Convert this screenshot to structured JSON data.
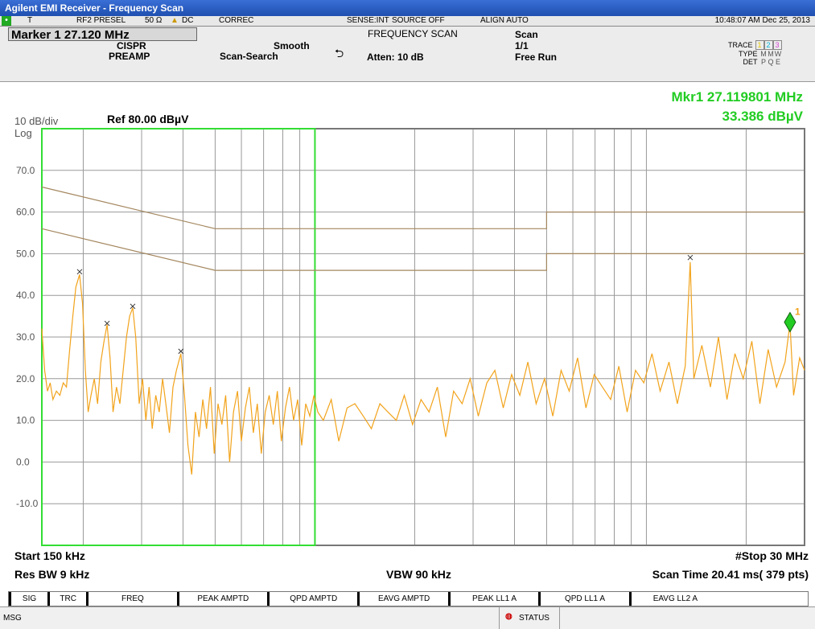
{
  "title_bar": "Agilent EMI Receiver  - Frequency Scan",
  "status": {
    "trigger": "T",
    "input": "RF2 PRESEL",
    "impedance": "50 Ω",
    "coupling": "DC",
    "correction": "CORREC",
    "sense": "SENSE:INT",
    "source": "SOURCE OFF",
    "align": "ALIGN AUTO",
    "clock": "10:48:07 AM Dec 25, 2013"
  },
  "marker_box": "Marker 1 27.120 MHz",
  "settings": {
    "detector": "CISPR",
    "preamp": "PREAMP",
    "smooth": "Smooth",
    "search": "Scan-Search"
  },
  "mode": "FREQUENCY SCAN",
  "atten": "Atten: 10 dB",
  "scan": {
    "label": "Scan",
    "count": "1/1",
    "run": "Free Run"
  },
  "trace_box": {
    "labels": [
      "TRACE",
      "TYPE",
      "DET"
    ],
    "rows": [
      [
        "1",
        "2",
        "3"
      ],
      [
        "M",
        "M",
        "W"
      ],
      [
        "P",
        "Q",
        "E"
      ]
    ],
    "colors": [
      "#e6c800",
      "#00b4d8",
      "#d040d0"
    ]
  },
  "marker_readout": {
    "line1": "Mkr1  27.119801 MHz",
    "line2": "33.386 dBµV"
  },
  "scale": "10 dB/div",
  "ref": "Ref 80.00 dBµV",
  "log": "Log",
  "chart_data": {
    "type": "line",
    "xscale": "log",
    "xlim": [
      0.15,
      30
    ],
    "xticks": [
      0.2,
      0.3,
      0.4,
      0.5,
      0.6,
      0.7,
      0.8,
      0.9,
      1,
      2,
      3,
      4,
      5,
      6,
      7,
      8,
      9,
      10,
      20
    ],
    "ylim": [
      -20,
      80
    ],
    "yticks": [
      {
        "value": 70,
        "label": "70.0"
      },
      {
        "value": 60,
        "label": "60.0"
      },
      {
        "value": 50,
        "label": "50.0"
      },
      {
        "value": 40,
        "label": "40.0"
      },
      {
        "value": 30,
        "label": "30.0"
      },
      {
        "value": 20,
        "label": "20.0"
      },
      {
        "value": 10,
        "label": "10.0"
      },
      {
        "value": 0,
        "label": "0.0"
      },
      {
        "value": -10,
        "label": "-10.0"
      }
    ],
    "grid": true,
    "highlight": [
      0.15,
      1
    ],
    "series": [
      {
        "color": "#f2a31b",
        "x": [
          0.15,
          0.153,
          0.156,
          0.159,
          0.162,
          0.166,
          0.17,
          0.174,
          0.178,
          0.182,
          0.186,
          0.19,
          0.195,
          0.199,
          0.203,
          0.207,
          0.211,
          0.216,
          0.221,
          0.226,
          0.231,
          0.236,
          0.241,
          0.246,
          0.252,
          0.258,
          0.264,
          0.27,
          0.276,
          0.282,
          0.288,
          0.295,
          0.302,
          0.309,
          0.316,
          0.323,
          0.331,
          0.339,
          0.347,
          0.355,
          0.364,
          0.373,
          0.382,
          0.394,
          0.404,
          0.414,
          0.425,
          0.436,
          0.447,
          0.459,
          0.471,
          0.484,
          0.497,
          0.51,
          0.524,
          0.538,
          0.553,
          0.568,
          0.584,
          0.6,
          0.617,
          0.634,
          0.652,
          0.67,
          0.689,
          0.708,
          0.728,
          0.749,
          0.77,
          0.792,
          0.815,
          0.838,
          0.862,
          0.887,
          0.912,
          0.938,
          0.965,
          0.993,
          1.02,
          1.06,
          1.12,
          1.18,
          1.25,
          1.32,
          1.4,
          1.48,
          1.57,
          1.66,
          1.76,
          1.86,
          1.97,
          2.09,
          2.21,
          2.34,
          2.48,
          2.62,
          2.78,
          2.94,
          3.11,
          3.3,
          3.49,
          3.7,
          3.92,
          4.15,
          4.39,
          4.65,
          4.93,
          5.22,
          5.53,
          5.85,
          6.2,
          6.57,
          6.96,
          7.37,
          7.8,
          8.26,
          8.75,
          9.27,
          9.82,
          10.4,
          11.0,
          11.7,
          12.4,
          13.1,
          13.56,
          13.9,
          14.7,
          15.6,
          16.5,
          17.5,
          18.5,
          19.6,
          20.8,
          22.0,
          23.3,
          24.7,
          26.2,
          27.12,
          27.8,
          29.0,
          30.0
        ],
        "values": [
          32,
          22,
          17,
          19,
          15,
          17,
          16,
          19,
          18,
          27,
          35,
          42,
          45,
          38,
          22,
          12,
          16,
          20,
          14,
          24,
          29,
          33,
          25,
          12,
          18,
          14,
          22,
          30,
          35,
          37,
          30,
          14,
          20,
          10,
          18,
          8,
          16,
          12,
          20,
          14,
          7,
          18,
          22,
          26,
          16,
          4,
          -3,
          12,
          6,
          15,
          8,
          18,
          2,
          14,
          9,
          16,
          0,
          12,
          17,
          5,
          13,
          18,
          7,
          14,
          2,
          12,
          16,
          9,
          17,
          5,
          13,
          18,
          10,
          15,
          4,
          14,
          11,
          16,
          12,
          10,
          15,
          5,
          13,
          14,
          11,
          8,
          14,
          12,
          10,
          16,
          9,
          15,
          12,
          18,
          6,
          17,
          14,
          20,
          11,
          19,
          22,
          13,
          21,
          16,
          24,
          14,
          20,
          11,
          22,
          17,
          25,
          13,
          21,
          18,
          15,
          23,
          12,
          22,
          19,
          26,
          17,
          24,
          14,
          23,
          48,
          20,
          28,
          18,
          30,
          15,
          26,
          20,
          29,
          14,
          27,
          18,
          24,
          33.4,
          16,
          25,
          22
        ]
      },
      {
        "color": "#a4875f",
        "x": [
          0.15,
          0.5,
          5,
          5,
          30
        ],
        "values": [
          66,
          56,
          56,
          60,
          60
        ]
      },
      {
        "color": "#a4875f",
        "x": [
          0.15,
          0.5,
          5,
          5,
          30
        ],
        "values": [
          56,
          46,
          46,
          50,
          50
        ]
      }
    ],
    "peaks": {
      "color": "#333333",
      "x": [
        0.195,
        0.236,
        0.282,
        0.394,
        13.56
      ],
      "values": [
        44.9,
        32.5,
        36.6,
        25.8,
        48.3
      ]
    },
    "marker": {
      "label": "1",
      "color": "#22cc22",
      "x": 27.12,
      "value": 33.386
    }
  },
  "footer": {
    "start": "Start 150 kHz",
    "rbw": "Res BW 9 kHz",
    "vbw": "VBW 90 kHz",
    "stop": "#Stop 30 MHz",
    "sweep": "Scan Time 20.41 ms( 379 pts)"
  },
  "softkeys": [
    "SIG",
    "TRC",
    "FREQ",
    "PEAK AMPTD",
    "QPD AMPTD",
    "EAVG AMPTD",
    "PEAK LL1 A",
    "QPD LL1 A",
    "EAVG LL2 A"
  ],
  "msg": "MSG",
  "status_label": "STATUS"
}
